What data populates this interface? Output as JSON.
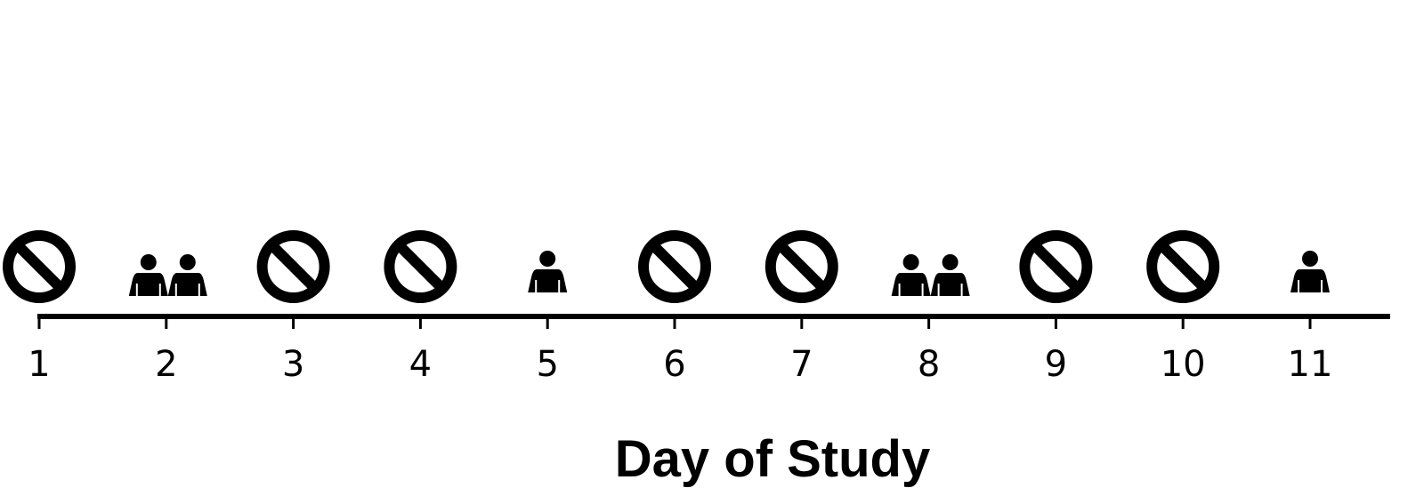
{
  "axis": {
    "title": "Day of Study"
  },
  "days": [
    {
      "day": "1",
      "marker": "no-symbol-icon",
      "people": 0
    },
    {
      "day": "2",
      "marker": "two-persons-icon",
      "people": 2
    },
    {
      "day": "3",
      "marker": "no-symbol-icon",
      "people": 0
    },
    {
      "day": "4",
      "marker": "no-symbol-icon",
      "people": 0
    },
    {
      "day": "5",
      "marker": "person-icon",
      "people": 1
    },
    {
      "day": "6",
      "marker": "no-symbol-icon",
      "people": 0
    },
    {
      "day": "7",
      "marker": "no-symbol-icon",
      "people": 0
    },
    {
      "day": "8",
      "marker": "two-persons-icon",
      "people": 2
    },
    {
      "day": "9",
      "marker": "no-symbol-icon",
      "people": 0
    },
    {
      "day": "10",
      "marker": "no-symbol-icon",
      "people": 0
    },
    {
      "day": "11",
      "marker": "person-icon",
      "people": 1
    }
  ],
  "colors": {
    "ink": "#000000",
    "background": "#ffffff"
  }
}
